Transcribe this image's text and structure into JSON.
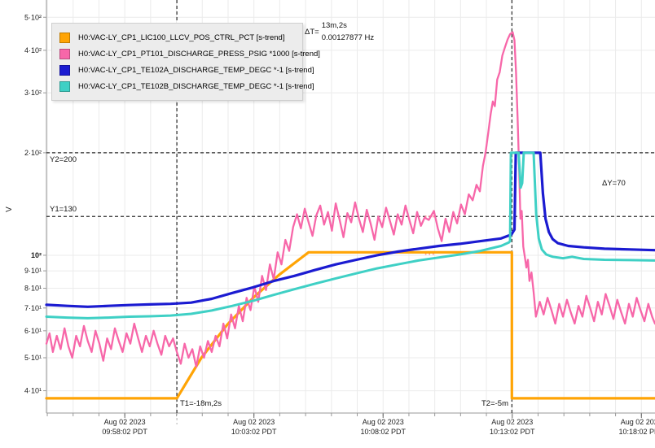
{
  "window": {
    "background": "#ffffff"
  },
  "chart_data": {
    "type": "line",
    "title": "",
    "ylabel": "V",
    "grid": true,
    "legend_position": "top-left",
    "colors": {
      "grid": "#ebebeb",
      "axis": "#999999",
      "axis_major": "#666666",
      "cursor": "#2b2b2b",
      "cursor_sub": "#b0b0b0",
      "text": "#1a1a1a",
      "legend_bg": "#ececec",
      "legend_border": "#cfcfcf"
    },
    "x_axis": {
      "unit": "time",
      "domain": [
        0,
        23.56
      ],
      "minor_tick_interval": 1,
      "minor_tick_offset": 0.033,
      "ticks": [
        {
          "t": 3.033,
          "date": "Aug 02 2023",
          "time": "09:58:02 PDT"
        },
        {
          "t": 8.033,
          "date": "Aug 02 2023",
          "time": "10:03:02 PDT"
        },
        {
          "t": 13.033,
          "date": "Aug 02 2023",
          "time": "10:08:02 PDT"
        },
        {
          "t": 18.033,
          "date": "Aug 02 2023",
          "time": "10:13:02 PDT"
        },
        {
          "t": 23.033,
          "date": "Aug 02 2023",
          "time": "10:18:02 PDT"
        }
      ]
    },
    "y_axis": {
      "scale": "log",
      "domain": [
        34.4,
        562
      ],
      "ticks": [
        {
          "v": 500,
          "label": "5·10²"
        },
        {
          "v": 400,
          "label": "4·10²"
        },
        {
          "v": 300,
          "label": "3·10²"
        },
        {
          "v": 200,
          "label": "2·10²"
        },
        {
          "v": 100,
          "label": "10²",
          "bold": true
        },
        {
          "v": 90,
          "label": "9·10¹"
        },
        {
          "v": 80,
          "label": "8·10¹"
        },
        {
          "v": 70,
          "label": "7·10¹"
        },
        {
          "v": 60,
          "label": "6·10¹"
        },
        {
          "v": 50,
          "label": "5·10¹"
        },
        {
          "v": 40,
          "label": "4·10¹"
        }
      ]
    },
    "cursors": {
      "t1": {
        "t": 5.05,
        "label": "T1=-18m,2s"
      },
      "t2": {
        "t": 18.02,
        "label": "T2=-5m"
      },
      "y1": {
        "value": 130,
        "label": "Y1=130"
      },
      "y2": {
        "value": 200,
        "label": "Y2=200"
      },
      "delta_t": {
        "prefix": "ΔT=",
        "line1": "13m,2s",
        "line2": "0.00127877 Hz"
      },
      "delta_y": {
        "label": "ΔY=70"
      }
    },
    "annotations": {
      "data_gaps": {
        "color": "#ff8f9f",
        "segments": [
          {
            "t1": 14.66,
            "t2": 15.06,
            "v": 130
          },
          {
            "t1": 14.66,
            "t2": 15.06,
            "v": 101
          }
        ]
      }
    },
    "series": [
      {
        "name": "lic100",
        "label": "H0:VAC-LY_CP1_LIC100_LLCV_POS_CTRL_PCT [s-trend]",
        "color": "#ffa405",
        "width": 3.2,
        "points": [
          [
            0,
            38
          ],
          [
            5.05,
            38
          ],
          [
            6,
            50
          ],
          [
            7,
            62.5
          ],
          [
            8,
            75
          ],
          [
            9,
            87.5
          ],
          [
            10,
            100
          ],
          [
            10.15,
            102
          ],
          [
            18.02,
            102
          ],
          [
            18.02,
            38
          ],
          [
            23.56,
            38
          ]
        ]
      },
      {
        "name": "pt101",
        "label": "H0:VAC-LY_CP1_PT101_DISCHARGE_PRESS_PSIG *1000 [s-trend]",
        "color": "#f767a9",
        "width": 2.3,
        "points": [
          [
            0,
            55
          ],
          [
            0.12,
            59
          ],
          [
            0.25,
            52
          ],
          [
            0.4,
            58
          ],
          [
            0.55,
            53
          ],
          [
            0.7,
            61
          ],
          [
            0.85,
            54
          ],
          [
            1,
            50
          ],
          [
            1.15,
            58
          ],
          [
            1.3,
            54
          ],
          [
            1.45,
            62
          ],
          [
            1.6,
            56
          ],
          [
            1.75,
            52
          ],
          [
            1.9,
            60
          ],
          [
            2.05,
            55
          ],
          [
            2.2,
            49
          ],
          [
            2.35,
            57
          ],
          [
            2.5,
            53
          ],
          [
            2.65,
            61
          ],
          [
            2.8,
            56
          ],
          [
            2.95,
            52
          ],
          [
            3.1,
            59
          ],
          [
            3.25,
            55
          ],
          [
            3.4,
            63
          ],
          [
            3.55,
            57
          ],
          [
            3.7,
            52
          ],
          [
            3.85,
            58
          ],
          [
            4,
            54
          ],
          [
            4.15,
            60
          ],
          [
            4.3,
            55
          ],
          [
            4.45,
            51
          ],
          [
            4.6,
            58
          ],
          [
            4.75,
            54
          ],
          [
            4.9,
            57
          ],
          [
            5.05,
            52
          ],
          [
            5.2,
            48
          ],
          [
            5.35,
            55
          ],
          [
            5.5,
            50
          ],
          [
            5.65,
            53
          ],
          [
            5.8,
            47
          ],
          [
            5.95,
            54
          ],
          [
            6.1,
            50
          ],
          [
            6.25,
            56
          ],
          [
            6.4,
            52
          ],
          [
            6.55,
            58
          ],
          [
            6.7,
            54
          ],
          [
            6.85,
            63
          ],
          [
            7,
            57
          ],
          [
            7.15,
            67
          ],
          [
            7.3,
            61
          ],
          [
            7.45,
            71
          ],
          [
            7.6,
            64
          ],
          [
            7.75,
            75
          ],
          [
            7.9,
            69
          ],
          [
            8.05,
            81
          ],
          [
            8.2,
            73
          ],
          [
            8.35,
            87
          ],
          [
            8.5,
            79
          ],
          [
            8.65,
            94
          ],
          [
            8.8,
            85
          ],
          [
            8.95,
            102
          ],
          [
            9.1,
            94
          ],
          [
            9.25,
            111
          ],
          [
            9.4,
            103
          ],
          [
            9.55,
            121
          ],
          [
            9.7,
            132
          ],
          [
            9.85,
            120
          ],
          [
            10,
            137
          ],
          [
            10.15,
            125
          ],
          [
            10.3,
            114
          ],
          [
            10.45,
            131
          ],
          [
            10.6,
            140
          ],
          [
            10.75,
            123
          ],
          [
            10.9,
            134
          ],
          [
            11.05,
            118
          ],
          [
            11.2,
            142
          ],
          [
            11.35,
            127
          ],
          [
            11.5,
            113
          ],
          [
            11.65,
            133
          ],
          [
            11.8,
            125
          ],
          [
            11.95,
            143
          ],
          [
            12.1,
            128
          ],
          [
            12.25,
            117
          ],
          [
            12.4,
            136
          ],
          [
            12.55,
            124
          ],
          [
            12.7,
            111
          ],
          [
            12.85,
            130
          ],
          [
            13,
            121
          ],
          [
            13.15,
            138
          ],
          [
            13.3,
            126
          ],
          [
            13.45,
            115
          ],
          [
            13.6,
            132
          ],
          [
            13.75,
            123
          ],
          [
            13.9,
            140
          ],
          [
            14.05,
            127
          ],
          [
            14.2,
            116
          ],
          [
            14.35,
            134
          ],
          [
            14.5,
            122
          ],
          [
            14.64,
            129
          ],
          [
            14.8,
            127
          ],
          [
            15,
            135
          ],
          [
            15.15,
            120
          ],
          [
            15.3,
            110
          ],
          [
            15.45,
            128
          ],
          [
            15.6,
            117
          ],
          [
            15.75,
            134
          ],
          [
            15.9,
            124
          ],
          [
            16.05,
            141
          ],
          [
            16.2,
            132
          ],
          [
            16.35,
            151
          ],
          [
            16.5,
            145
          ],
          [
            16.65,
            161
          ],
          [
            16.78,
            154
          ],
          [
            16.9,
            183
          ],
          [
            17,
            200
          ],
          [
            17.1,
            228
          ],
          [
            17.2,
            260
          ],
          [
            17.28,
            283
          ],
          [
            17.36,
            274
          ],
          [
            17.45,
            328
          ],
          [
            17.55,
            345
          ],
          [
            17.65,
            386
          ],
          [
            17.75,
            408
          ],
          [
            17.85,
            430
          ],
          [
            17.95,
            446
          ],
          [
            18.05,
            452
          ],
          [
            18.12,
            428
          ],
          [
            18.18,
            345
          ],
          [
            18.24,
            255
          ],
          [
            18.3,
            180
          ],
          [
            18.35,
            128
          ],
          [
            18.4,
            135
          ],
          [
            18.46,
            106
          ],
          [
            18.52,
            99
          ],
          [
            18.58,
            92
          ],
          [
            18.64,
            97
          ],
          [
            18.7,
            84
          ],
          [
            18.78,
            89
          ],
          [
            18.86,
            78
          ],
          [
            18.95,
            66
          ],
          [
            19.1,
            73
          ],
          [
            19.25,
            67
          ],
          [
            19.4,
            75
          ],
          [
            19.55,
            69
          ],
          [
            19.7,
            63
          ],
          [
            19.85,
            72
          ],
          [
            20,
            66
          ],
          [
            20.15,
            74
          ],
          [
            20.3,
            68
          ],
          [
            20.45,
            63
          ],
          [
            20.6,
            71
          ],
          [
            20.75,
            66
          ],
          [
            20.9,
            76
          ],
          [
            21.05,
            70
          ],
          [
            21.2,
            64
          ],
          [
            21.35,
            73
          ],
          [
            21.5,
            67
          ],
          [
            21.65,
            77
          ],
          [
            21.8,
            71
          ],
          [
            21.95,
            65
          ],
          [
            22.1,
            74
          ],
          [
            22.25,
            68
          ],
          [
            22.4,
            63
          ],
          [
            22.55,
            72
          ],
          [
            22.7,
            66
          ],
          [
            22.85,
            75
          ],
          [
            23,
            69
          ],
          [
            23.15,
            64
          ],
          [
            23.3,
            72
          ],
          [
            23.45,
            66
          ],
          [
            23.56,
            63
          ]
        ]
      },
      {
        "name": "te102a",
        "label": "H0:VAC-LY_CP1_TE102A_DISCHARGE_TEMP_DEGC *-1 [s-trend]",
        "color": "#1b1bd1",
        "width": 3.2,
        "points": [
          [
            0,
            71.5
          ],
          [
            0.8,
            71
          ],
          [
            1.6,
            70.6
          ],
          [
            2.4,
            71
          ],
          [
            3.2,
            71.4
          ],
          [
            4,
            71.7
          ],
          [
            4.8,
            72
          ],
          [
            5.6,
            72.6
          ],
          [
            6.4,
            74.5
          ],
          [
            7.2,
            77.5
          ],
          [
            8,
            80.5
          ],
          [
            8.8,
            84
          ],
          [
            9.6,
            87
          ],
          [
            10.4,
            90.5
          ],
          [
            11.2,
            94
          ],
          [
            12,
            97
          ],
          [
            12.8,
            100
          ],
          [
            13.6,
            102.5
          ],
          [
            14.4,
            104.5
          ],
          [
            15.2,
            106.5
          ],
          [
            16,
            108
          ],
          [
            16.8,
            110
          ],
          [
            17.6,
            112
          ],
          [
            18,
            115
          ],
          [
            18.12,
            119
          ],
          [
            18.17,
            200
          ],
          [
            19.12,
            200
          ],
          [
            19.22,
            152
          ],
          [
            19.32,
            128
          ],
          [
            19.45,
            117
          ],
          [
            19.6,
            111.5
          ],
          [
            19.8,
            108.5
          ],
          [
            20.2,
            106.5
          ],
          [
            20.8,
            105.5
          ],
          [
            21.6,
            104.5
          ],
          [
            22.6,
            104
          ],
          [
            23.56,
            103.5
          ]
        ]
      },
      {
        "name": "te102b",
        "label": "H0:VAC-LY_CP1_TE102B_DISCHARGE_TEMP_DEGC *-1 [s-trend]",
        "color": "#3fd0c5",
        "width": 3,
        "points": [
          [
            0,
            66
          ],
          [
            0.8,
            65.6
          ],
          [
            1.6,
            65.3
          ],
          [
            2.4,
            65.6
          ],
          [
            3.2,
            66
          ],
          [
            4,
            66.2
          ],
          [
            4.8,
            66.5
          ],
          [
            5.6,
            67.3
          ],
          [
            6.4,
            68.8
          ],
          [
            7.2,
            71
          ],
          [
            8,
            73.5
          ],
          [
            8.8,
            76.5
          ],
          [
            9.6,
            79.5
          ],
          [
            10.4,
            82.5
          ],
          [
            11.2,
            85.5
          ],
          [
            12,
            88.5
          ],
          [
            12.8,
            91.5
          ],
          [
            13.6,
            94
          ],
          [
            14.4,
            96.5
          ],
          [
            15.2,
            98.5
          ],
          [
            16,
            100.5
          ],
          [
            16.8,
            103
          ],
          [
            17.6,
            106.5
          ],
          [
            17.9,
            109
          ],
          [
            17.95,
            110
          ],
          [
            17.98,
            200
          ],
          [
            18.28,
            200
          ],
          [
            18.36,
            158
          ],
          [
            18.42,
            163
          ],
          [
            18.48,
            200
          ],
          [
            18.86,
            200
          ],
          [
            18.96,
            132
          ],
          [
            19.06,
            112
          ],
          [
            19.18,
            104
          ],
          [
            19.35,
            100.5
          ],
          [
            19.6,
            99
          ],
          [
            20,
            98
          ],
          [
            20.35,
            99
          ],
          [
            20.8,
            97.5
          ],
          [
            21.6,
            97
          ],
          [
            22.6,
            96.8
          ],
          [
            23.56,
            96.5
          ]
        ]
      }
    ]
  }
}
